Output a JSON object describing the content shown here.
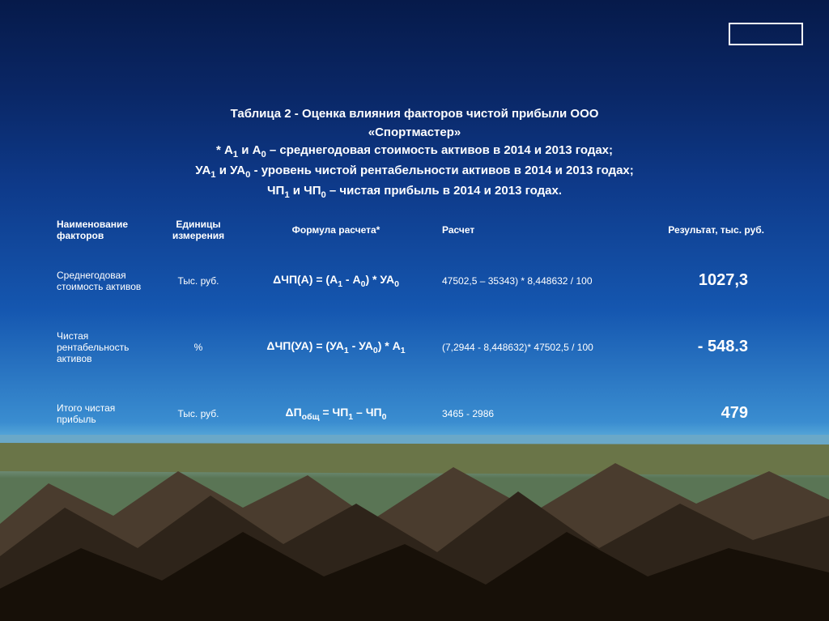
{
  "colors": {
    "text": "#ffffff",
    "mountain_dark": "#1a1410",
    "mountain_mid": "#3a2f25",
    "mountain_light": "#5a4a38",
    "ground": "#6a7548",
    "water": "#5a8aa8"
  },
  "title": {
    "l1": "Таблица 2 - Оценка влияния факторов чистой прибыли ООО",
    "l2": "«Спортмастер»",
    "l3_pre": "* А",
    "l3_mid": " и А",
    "l3_post": " – среднегодовая стоимость активов в 2014 и 2013 годах;",
    "l4_pre": "УА",
    "l4_mid": " и УА",
    "l4_post": " - уровень чистой рентабельности активов в 2014 и 2013 годах;",
    "l5_pre": "ЧП",
    "l5_mid": " и   ЧП",
    "l5_post": " – чистая прибыль в 2014 и 2013 годах."
  },
  "head": {
    "name": "Наименование факторов",
    "unit": "Единицы измерения",
    "formula": "Формула расчета*",
    "calc": "Расчет",
    "result": "Результат, тыс. руб."
  },
  "rows": [
    {
      "name": "Среднегодовая стоимость активов",
      "unit": "Тыс. руб.",
      "formula_html": "ΔЧП(А) = (А<sub>1</sub> - А<sub>0</sub>) * УА<sub>0</sub>",
      "calc": "47502,5 – 35343) * 8,448632 / 100",
      "result": "1027,3"
    },
    {
      "name": "Чистая рентабельность активов",
      "unit": "%",
      "formula_html": "ΔЧП(УА) = (УА<sub>1</sub> - УА<sub>0</sub>) * А<sub>1</sub>",
      "calc": "(7,2944 - 8,448632)* 47502,5 / 100",
      "result": "- 548.3"
    },
    {
      "name": "Итого чистая прибыль",
      "unit": "Тыс. руб.",
      "formula_html": "ΔП<sub>общ</sub> = ЧП<sub>1</sub> – ЧП<sub>0</sub>",
      "calc": "3465 - 2986",
      "result": "479"
    }
  ]
}
